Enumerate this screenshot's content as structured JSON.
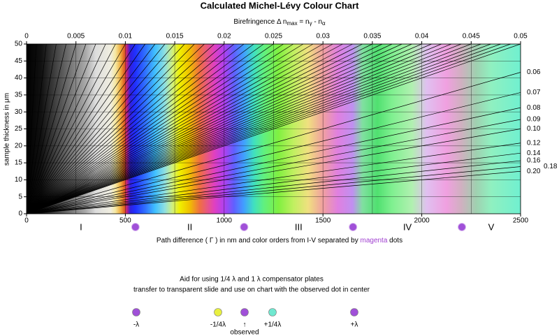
{
  "chart_data": {
    "type": "michel-levy",
    "title": "Calculated Michel-Lévy Colour Chart",
    "x2_label": {
      "text": "Birefringence Δ n",
      "sub1": "max",
      "mid1": " = n",
      "sub2": "γ",
      "mid2": " - n",
      "sub3": "α"
    },
    "y_label": "sample thickness in μm",
    "x_label": {
      "before": "Path difference ( Γ ) in nm and color orders from I-V separated by ",
      "highlight": "magenta",
      "after": " dots"
    },
    "xlim": [
      0,
      2500
    ],
    "xticks": [
      0,
      500,
      1000,
      1500,
      2000,
      2500
    ],
    "ylim": [
      0,
      50
    ],
    "yticks": [
      0,
      5,
      10,
      15,
      20,
      25,
      30,
      35,
      40,
      45,
      50
    ],
    "x2lim": [
      0,
      0.05
    ],
    "x2ticks": [
      0,
      0.005,
      0.01,
      0.015,
      0.02,
      0.025,
      0.03,
      0.035,
      0.04,
      0.045,
      0.05
    ],
    "grid": true,
    "line_color": "#000000",
    "lines": [
      0.001,
      0.002,
      0.003,
      0.004,
      0.005,
      0.006,
      0.007,
      0.008,
      0.009,
      0.01,
      0.011,
      0.012,
      0.013,
      0.014,
      0.015,
      0.016,
      0.017,
      0.018,
      0.019,
      0.02,
      0.021,
      0.022,
      0.023,
      0.024,
      0.025,
      0.026,
      0.027,
      0.028,
      0.029,
      0.03,
      0.031,
      0.032,
      0.033,
      0.034,
      0.035,
      0.036,
      0.037,
      0.038,
      0.039,
      0.04,
      0.041,
      0.042,
      0.043,
      0.044,
      0.045,
      0.046,
      0.047,
      0.048,
      0.049,
      0.05
    ],
    "labeled_lines": [
      0.06,
      0.07,
      0.08,
      0.09,
      {
        "value": 0.1,
        "label": "0.10"
      },
      0.12,
      0.14,
      0.16,
      0.18,
      {
        "value": 0.2,
        "label": "0.20"
      }
    ],
    "order_labels": [
      "I",
      "II",
      "III",
      "IV",
      "V"
    ],
    "order_boundaries": [
      551,
      1101,
      1652,
      2203
    ],
    "boundary_color": "#a050d8"
  },
  "compensator": {
    "title": "Aid for using 1/4 λ and 1 λ compensator plates",
    "subtitle": "transfer to transparent slide and use on chart with the observed dot in center",
    "markers": [
      {
        "label": "-λ",
        "color": "#a050d8"
      },
      {
        "label": "-1/4λ",
        "color": "#e8f040"
      },
      {
        "label": "↑",
        "color": "#a050d8"
      },
      {
        "label": "+1/4λ",
        "color": "#70e8d0"
      },
      {
        "label": "+λ",
        "color": "#a050d8"
      }
    ],
    "observed": "observed"
  }
}
